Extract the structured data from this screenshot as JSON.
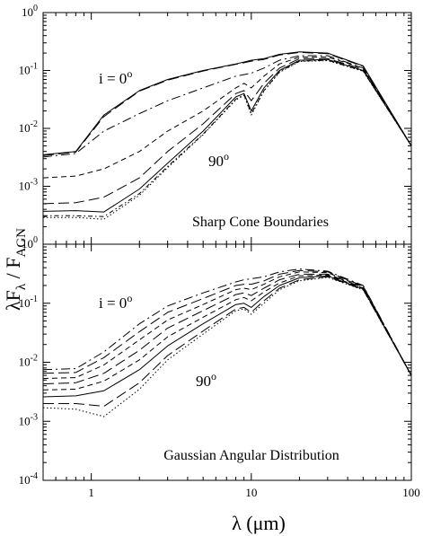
{
  "figure": {
    "ylabel": {
      "main": "λF",
      "sub1": "λ",
      "mid": " / F",
      "sub2": "AGN"
    },
    "xlabel": {
      "main": "λ (μm)"
    }
  },
  "chart_data": [
    {
      "type": "line",
      "panel": "top",
      "title": "",
      "annotation_box": "Sharp Cone Boundaries",
      "annotations": {
        "i_label": "i = 0",
        "i_sup": "o",
        "deg_label": "90",
        "deg_sup": "o"
      },
      "xscale": "log",
      "yscale": "log",
      "xlim": [
        0.5,
        100
      ],
      "ylim": [
        0.0001,
        1
      ],
      "x_ticks": [
        "1",
        "10",
        "100"
      ],
      "y_ticks": [
        {
          "base": "10",
          "exp": "0"
        },
        {
          "base": "10",
          "exp": "-1"
        },
        {
          "base": "10",
          "exp": "-2"
        },
        {
          "base": "10",
          "exp": "-3"
        }
      ],
      "series": [
        {
          "dash": "solid",
          "x": [
            0.5,
            0.8,
            1.2,
            2,
            3,
            5,
            8,
            9,
            10,
            12,
            15,
            20,
            30,
            50,
            100
          ],
          "y": [
            0.0035,
            0.004,
            0.017,
            0.045,
            0.07,
            0.1,
            0.13,
            0.14,
            0.15,
            0.16,
            0.19,
            0.21,
            0.2,
            0.12,
            0.005
          ]
        },
        {
          "dash": "long-dash",
          "x": [
            0.5,
            0.8,
            1.2,
            2,
            3,
            5,
            8,
            9,
            10,
            12,
            15,
            20,
            30,
            50,
            100
          ],
          "y": [
            0.0034,
            0.0039,
            0.016,
            0.044,
            0.068,
            0.098,
            0.128,
            0.136,
            0.145,
            0.155,
            0.185,
            0.205,
            0.195,
            0.118,
            0.005
          ]
        },
        {
          "dash": "dash-dot",
          "x": [
            0.5,
            0.8,
            1.2,
            2,
            3,
            5,
            8,
            9,
            10,
            12,
            15,
            20,
            30,
            50,
            100
          ],
          "y": [
            0.0032,
            0.0037,
            0.009,
            0.018,
            0.03,
            0.05,
            0.08,
            0.085,
            0.09,
            0.11,
            0.15,
            0.18,
            0.18,
            0.11,
            0.005
          ]
        },
        {
          "dash": "short-dash",
          "x": [
            0.5,
            0.8,
            1.2,
            2,
            3,
            5,
            8,
            9,
            10,
            12,
            15,
            20,
            30,
            50,
            100
          ],
          "y": [
            0.0014,
            0.0015,
            0.002,
            0.004,
            0.009,
            0.02,
            0.05,
            0.06,
            0.05,
            0.08,
            0.13,
            0.17,
            0.17,
            0.11,
            0.005
          ]
        },
        {
          "dash": "long-dash",
          "x": [
            0.5,
            0.8,
            1.2,
            2,
            3,
            5,
            8,
            9,
            10,
            12,
            15,
            20,
            30,
            50,
            100
          ],
          "y": [
            0.0005,
            0.00052,
            0.00065,
            0.0014,
            0.004,
            0.012,
            0.04,
            0.045,
            0.03,
            0.06,
            0.11,
            0.16,
            0.16,
            0.105,
            0.005
          ]
        },
        {
          "dash": "solid",
          "x": [
            0.5,
            0.8,
            1.2,
            2,
            3,
            5,
            8,
            9,
            10,
            12,
            15,
            20,
            30,
            50,
            100
          ],
          "y": [
            0.00037,
            0.00038,
            0.00036,
            0.0009,
            0.0025,
            0.009,
            0.035,
            0.04,
            0.02,
            0.05,
            0.1,
            0.15,
            0.155,
            0.1,
            0.005
          ]
        },
        {
          "dash": "dot-dash",
          "x": [
            0.5,
            0.8,
            1.2,
            2,
            3,
            5,
            8,
            9,
            10,
            12,
            15,
            20,
            30,
            50,
            100
          ],
          "y": [
            0.00031,
            0.00031,
            0.0003,
            0.00075,
            0.0022,
            0.008,
            0.032,
            0.038,
            0.018,
            0.045,
            0.095,
            0.145,
            0.15,
            0.098,
            0.005
          ]
        },
        {
          "dash": "dotted",
          "x": [
            0.5,
            0.8,
            1.2,
            2,
            3,
            5,
            8,
            9,
            10,
            12,
            15,
            20,
            30,
            50,
            100
          ],
          "y": [
            0.00029,
            0.00029,
            0.00027,
            0.0007,
            0.0021,
            0.0078,
            0.031,
            0.037,
            0.017,
            0.044,
            0.093,
            0.143,
            0.148,
            0.097,
            0.005
          ]
        }
      ]
    },
    {
      "type": "line",
      "panel": "bottom",
      "title": "",
      "annotation_box": "Gaussian Angular Distribution",
      "annotations": {
        "i_label": "i = 0",
        "i_sup": "o",
        "deg_label": "90",
        "deg_sup": "o"
      },
      "xscale": "log",
      "yscale": "log",
      "xlim": [
        0.5,
        100
      ],
      "ylim": [
        0.0001,
        1
      ],
      "x_ticks": [
        "1",
        "10",
        "100"
      ],
      "y_ticks": [
        {
          "base": "10",
          "exp": "0"
        },
        {
          "base": "10",
          "exp": "-1"
        },
        {
          "base": "10",
          "exp": "-2"
        },
        {
          "base": "10",
          "exp": "-3"
        },
        {
          "base": "10",
          "exp": "-4"
        }
      ],
      "series": [
        {
          "dash": "dash-dot",
          "x": [
            0.5,
            0.8,
            1.2,
            2,
            3,
            5,
            8,
            9,
            10,
            12,
            15,
            20,
            30,
            50,
            100
          ],
          "y": [
            0.0075,
            0.0078,
            0.015,
            0.045,
            0.09,
            0.15,
            0.23,
            0.25,
            0.26,
            0.28,
            0.34,
            0.38,
            0.35,
            0.2,
            0.006
          ]
        },
        {
          "dash": "long-dash",
          "x": [
            0.5,
            0.8,
            1.2,
            2,
            3,
            5,
            8,
            9,
            10,
            12,
            15,
            20,
            30,
            50,
            100
          ],
          "y": [
            0.0065,
            0.0067,
            0.012,
            0.033,
            0.07,
            0.12,
            0.2,
            0.21,
            0.21,
            0.24,
            0.31,
            0.36,
            0.34,
            0.195,
            0.006
          ]
        },
        {
          "dash": "short-dash",
          "x": [
            0.5,
            0.8,
            1.2,
            2,
            3,
            5,
            8,
            9,
            10,
            12,
            15,
            20,
            30,
            50,
            100
          ],
          "y": [
            0.0053,
            0.0055,
            0.009,
            0.024,
            0.052,
            0.095,
            0.17,
            0.18,
            0.17,
            0.21,
            0.28,
            0.34,
            0.33,
            0.19,
            0.006
          ]
        },
        {
          "dash": "long-dash",
          "x": [
            0.5,
            0.8,
            1.2,
            2,
            3,
            5,
            8,
            9,
            10,
            12,
            15,
            20,
            30,
            50,
            100
          ],
          "y": [
            0.0043,
            0.0045,
            0.0065,
            0.016,
            0.038,
            0.075,
            0.14,
            0.15,
            0.135,
            0.18,
            0.25,
            0.31,
            0.31,
            0.185,
            0.006
          ]
        },
        {
          "dash": "short-dash",
          "x": [
            0.5,
            0.8,
            1.2,
            2,
            3,
            5,
            8,
            9,
            10,
            12,
            15,
            20,
            30,
            50,
            100
          ],
          "y": [
            0.0034,
            0.0035,
            0.0048,
            0.011,
            0.027,
            0.058,
            0.115,
            0.125,
            0.11,
            0.155,
            0.22,
            0.29,
            0.3,
            0.18,
            0.006
          ]
        },
        {
          "dash": "solid",
          "x": [
            0.5,
            0.8,
            1.2,
            2,
            3,
            5,
            8,
            9,
            10,
            12,
            15,
            20,
            30,
            50,
            100
          ],
          "y": [
            0.0026,
            0.0027,
            0.0033,
            0.0075,
            0.019,
            0.045,
            0.095,
            0.1,
            0.085,
            0.13,
            0.2,
            0.27,
            0.29,
            0.175,
            0.006
          ]
        },
        {
          "dash": "long-dash",
          "x": [
            0.5,
            0.8,
            1.2,
            2,
            3,
            5,
            8,
            9,
            10,
            12,
            15,
            20,
            30,
            50,
            100
          ],
          "y": [
            0.002,
            0.002,
            0.0018,
            0.0045,
            0.013,
            0.034,
            0.08,
            0.085,
            0.07,
            0.11,
            0.18,
            0.25,
            0.28,
            0.17,
            0.006
          ]
        },
        {
          "dash": "dotted",
          "x": [
            0.5,
            0.8,
            1.2,
            2,
            3,
            5,
            8,
            9,
            10,
            12,
            15,
            20,
            30,
            50,
            100
          ],
          "y": [
            0.0017,
            0.0016,
            0.0012,
            0.0035,
            0.011,
            0.03,
            0.075,
            0.08,
            0.065,
            0.1,
            0.17,
            0.24,
            0.275,
            0.168,
            0.006
          ]
        }
      ]
    }
  ]
}
